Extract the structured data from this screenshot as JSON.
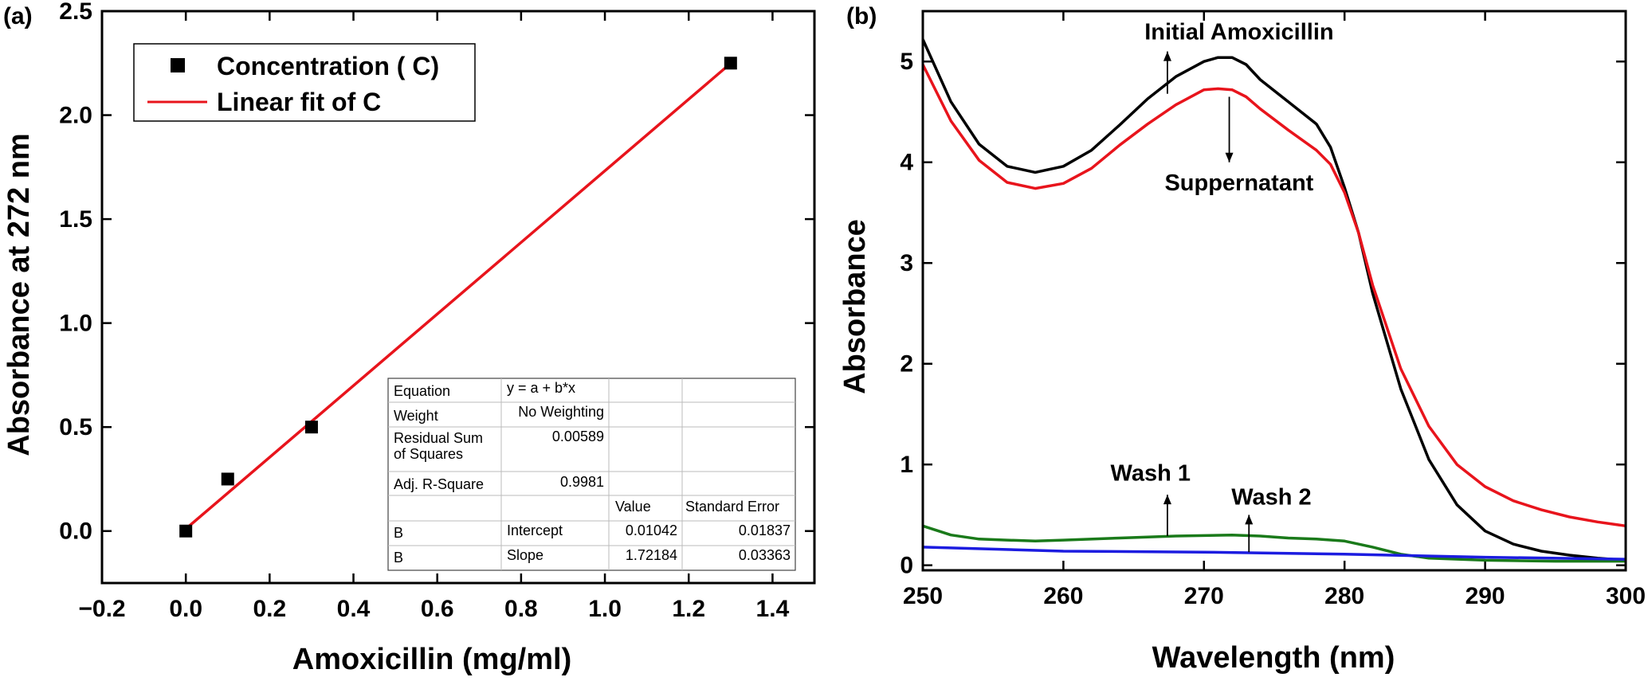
{
  "chart_data": [
    {
      "id": "a",
      "panel_label": "(a)",
      "type": "scatter",
      "title": "",
      "xlabel": "Amoxicillin (mg/ml)",
      "ylabel": "Absorbance at 272 nm",
      "xlim": [
        -0.2,
        1.5
      ],
      "ylim": [
        -0.25,
        2.5
      ],
      "xticks": [
        -0.2,
        0.0,
        0.2,
        0.4,
        0.6,
        0.8,
        1.0,
        1.2,
        1.4
      ],
      "xtick_labels": [
        "−0.2",
        "0.0",
        "0.2",
        "0.4",
        "0.6",
        "0.8",
        "1.0",
        "1.2",
        "1.4"
      ],
      "yticks": [
        0.0,
        0.5,
        1.0,
        1.5,
        2.0,
        2.5
      ],
      "ytick_labels": [
        "0.0",
        "0.5",
        "1.0",
        "1.5",
        "2.0",
        "2.5"
      ],
      "series": [
        {
          "name": "Concentration ( C)",
          "kind": "scatter",
          "color": "#000000",
          "x": [
            0.0,
            0.1,
            0.3,
            1.3
          ],
          "y": [
            0.0,
            0.25,
            0.5,
            2.25
          ]
        },
        {
          "name": "Linear fit of C",
          "kind": "line",
          "color": "#e8141c",
          "x": [
            0.0,
            1.3
          ],
          "y": [
            0.01042,
            2.24881
          ]
        }
      ],
      "legend": {
        "position": "top-left",
        "items": [
          "Concentration ( C)",
          "Linear fit of C"
        ]
      },
      "stats_table": {
        "position": "bottom-right",
        "rows": [
          [
            "Equation",
            "y = a + b*x",
            "",
            ""
          ],
          [
            "Weight",
            "No Weighting",
            "",
            ""
          ],
          [
            "Residual Sum of Squares",
            "0.00589",
            "",
            ""
          ],
          [
            "Adj. R-Square",
            "0.9981",
            "",
            ""
          ],
          [
            "",
            "",
            "Value",
            "Standard Error"
          ],
          [
            "B",
            "Intercept",
            "0.01042",
            "0.01837"
          ],
          [
            "B",
            "Slope",
            "1.72184",
            "0.03363"
          ]
        ]
      }
    },
    {
      "id": "b",
      "panel_label": "(b)",
      "type": "line",
      "title": "",
      "xlabel": "Wavelength (nm)",
      "ylabel": "Absorbance",
      "xlim": [
        250,
        300
      ],
      "ylim": [
        -0.05,
        5.5
      ],
      "xticks": [
        250,
        260,
        270,
        280,
        290,
        300
      ],
      "xtick_labels": [
        "250",
        "260",
        "270",
        "280",
        "290",
        "300"
      ],
      "yticks": [
        0,
        1,
        2,
        3,
        4,
        5
      ],
      "ytick_labels": [
        "0",
        "1",
        "2",
        "3",
        "4",
        "5"
      ],
      "series": [
        {
          "name": "Initial Amoxicillin",
          "color": "#000000",
          "x": [
            250,
            252,
            254,
            256,
            258,
            260,
            262,
            264,
            266,
            268,
            270,
            271,
            272,
            273,
            274,
            276,
            278,
            279,
            280,
            281,
            282,
            284,
            286,
            288,
            290,
            292,
            294,
            296,
            298,
            300
          ],
          "y": [
            5.22,
            4.6,
            4.18,
            3.96,
            3.9,
            3.96,
            4.12,
            4.37,
            4.63,
            4.85,
            5.0,
            5.04,
            5.04,
            4.97,
            4.82,
            4.6,
            4.38,
            4.15,
            3.75,
            3.3,
            2.7,
            1.75,
            1.05,
            0.6,
            0.34,
            0.21,
            0.14,
            0.1,
            0.07,
            0.05
          ]
        },
        {
          "name": "Suppernatant",
          "color": "#e8141c",
          "x": [
            250,
            252,
            254,
            256,
            258,
            260,
            262,
            264,
            266,
            268,
            270,
            271,
            272,
            273,
            274,
            276,
            278,
            279,
            280,
            281,
            282,
            284,
            286,
            288,
            290,
            292,
            294,
            296,
            298,
            300
          ],
          "y": [
            4.97,
            4.41,
            4.02,
            3.8,
            3.74,
            3.79,
            3.94,
            4.17,
            4.38,
            4.57,
            4.72,
            4.73,
            4.72,
            4.65,
            4.53,
            4.32,
            4.12,
            3.98,
            3.7,
            3.3,
            2.78,
            1.95,
            1.38,
            1.0,
            0.78,
            0.64,
            0.55,
            0.48,
            0.43,
            0.39
          ]
        },
        {
          "name": "Wash 1",
          "color": "#1a7a1a",
          "x": [
            250,
            252,
            254,
            256,
            258,
            260,
            264,
            268,
            272,
            274,
            276,
            278,
            280,
            282,
            284,
            286,
            290,
            295,
            300
          ],
          "y": [
            0.39,
            0.3,
            0.26,
            0.25,
            0.24,
            0.25,
            0.27,
            0.29,
            0.3,
            0.29,
            0.27,
            0.26,
            0.24,
            0.18,
            0.11,
            0.07,
            0.05,
            0.04,
            0.04
          ]
        },
        {
          "name": "Wash 2",
          "color": "#1c1ce0",
          "x": [
            250,
            260,
            270,
            280,
            290,
            300
          ],
          "y": [
            0.18,
            0.14,
            0.13,
            0.11,
            0.08,
            0.06
          ]
        }
      ],
      "annotations": [
        {
          "text": "Initial Amoxicillin",
          "x": 272.5,
          "y": 5.3,
          "arrow_x": 267.4,
          "arrow_from_y": 4.68,
          "arrow_to_y": 5.1
        },
        {
          "text": "Suppernatant",
          "x": 272.5,
          "y": 3.8,
          "arrow_x": 271.8,
          "arrow_from_y": 4.65,
          "arrow_to_y": 4.0
        },
        {
          "text": "Wash 1",
          "x": 266.2,
          "y": 0.92,
          "arrow_x": 267.4,
          "arrow_from_y": 0.29,
          "arrow_to_y": 0.7
        },
        {
          "text": "Wash 2",
          "x": 274.8,
          "y": 0.68,
          "arrow_x": 273.2,
          "arrow_from_y": 0.13,
          "arrow_to_y": 0.5
        }
      ]
    }
  ]
}
